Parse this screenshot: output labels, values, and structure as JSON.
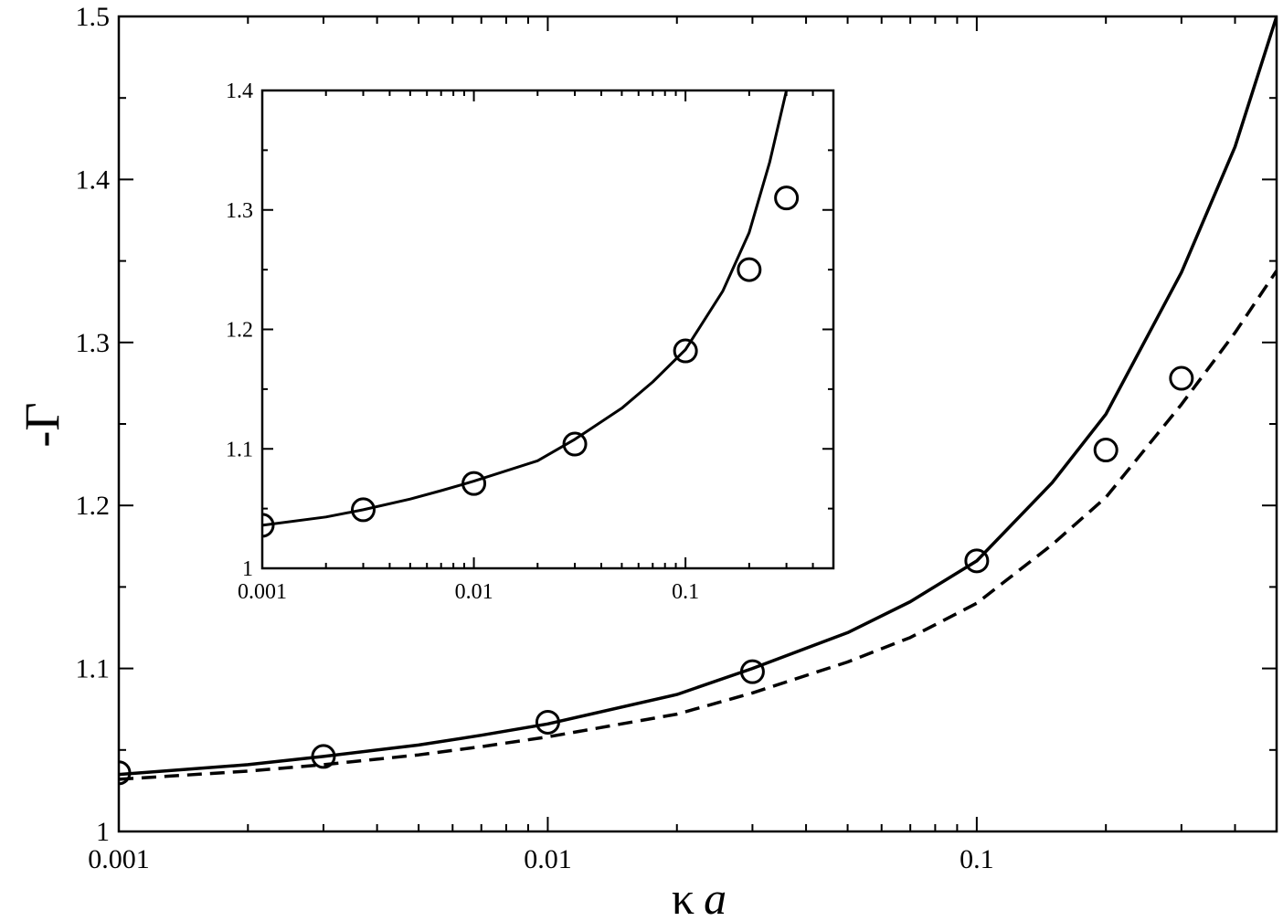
{
  "chart_data": [
    {
      "type": "line",
      "panel": "main",
      "xscale": "log",
      "xlim": [
        0.001,
        0.5
      ],
      "ylim": [
        1.0,
        1.5
      ],
      "xticks": [
        0.001,
        0.01,
        0.1
      ],
      "xtick_labels": [
        "0.001",
        "0.01",
        "0.1"
      ],
      "yticks": [
        1.0,
        1.1,
        1.2,
        1.3,
        1.4,
        1.5
      ],
      "ytick_labels": [
        "1",
        "1.1",
        "1.2",
        "1.3",
        "1.4",
        "1.5"
      ],
      "xlabel_symbol": "κ",
      "xlabel_var": "a",
      "ylabel": "-Γ",
      "grid": false,
      "series": [
        {
          "style": "solid",
          "x": [
            0.001,
            0.002,
            0.003,
            0.005,
            0.007,
            0.01,
            0.02,
            0.03,
            0.05,
            0.07,
            0.1,
            0.15,
            0.2,
            0.3,
            0.4,
            0.5
          ],
          "y": [
            1.035,
            1.041,
            1.046,
            1.053,
            1.059,
            1.066,
            1.084,
            1.1,
            1.122,
            1.141,
            1.166,
            1.214,
            1.256,
            1.343,
            1.42,
            1.5
          ]
        },
        {
          "style": "dashed",
          "x": [
            0.001,
            0.002,
            0.003,
            0.005,
            0.007,
            0.01,
            0.02,
            0.03,
            0.05,
            0.07,
            0.1,
            0.15,
            0.2,
            0.3,
            0.4,
            0.5
          ],
          "y": [
            1.032,
            1.037,
            1.041,
            1.047,
            1.052,
            1.058,
            1.072,
            1.085,
            1.104,
            1.119,
            1.14,
            1.176,
            1.205,
            1.262,
            1.306,
            1.344
          ]
        },
        {
          "style": "markers",
          "marker": "open-circle",
          "x": [
            0.001,
            0.003,
            0.01,
            0.03,
            0.1,
            0.2,
            0.3
          ],
          "y": [
            1.036,
            1.046,
            1.067,
            1.098,
            1.166,
            1.234,
            1.278
          ]
        }
      ]
    },
    {
      "type": "line",
      "panel": "inset",
      "xscale": "log",
      "xlim": [
        0.001,
        0.5
      ],
      "ylim": [
        1.0,
        1.4
      ],
      "xticks": [
        0.001,
        0.01,
        0.1
      ],
      "xtick_labels": [
        "0.001",
        "0.01",
        "0.1"
      ],
      "yticks": [
        1.0,
        1.1,
        1.2,
        1.3,
        1.4
      ],
      "ytick_labels": [
        "1",
        "1.1",
        "1.2",
        "1.3",
        "1.4"
      ],
      "grid": false,
      "series": [
        {
          "style": "solid",
          "x": [
            0.001,
            0.002,
            0.003,
            0.005,
            0.007,
            0.01,
            0.02,
            0.03,
            0.05,
            0.07,
            0.1,
            0.15,
            0.2,
            0.25,
            0.3
          ],
          "y": [
            1.036,
            1.043,
            1.049,
            1.058,
            1.065,
            1.073,
            1.09,
            1.108,
            1.134,
            1.156,
            1.183,
            1.232,
            1.281,
            1.34,
            1.4
          ]
        },
        {
          "style": "markers",
          "marker": "open-circle",
          "x": [
            0.001,
            0.003,
            0.01,
            0.03,
            0.1,
            0.2,
            0.3
          ],
          "y": [
            1.036,
            1.049,
            1.071,
            1.104,
            1.182,
            1.25,
            1.31
          ]
        }
      ]
    }
  ]
}
